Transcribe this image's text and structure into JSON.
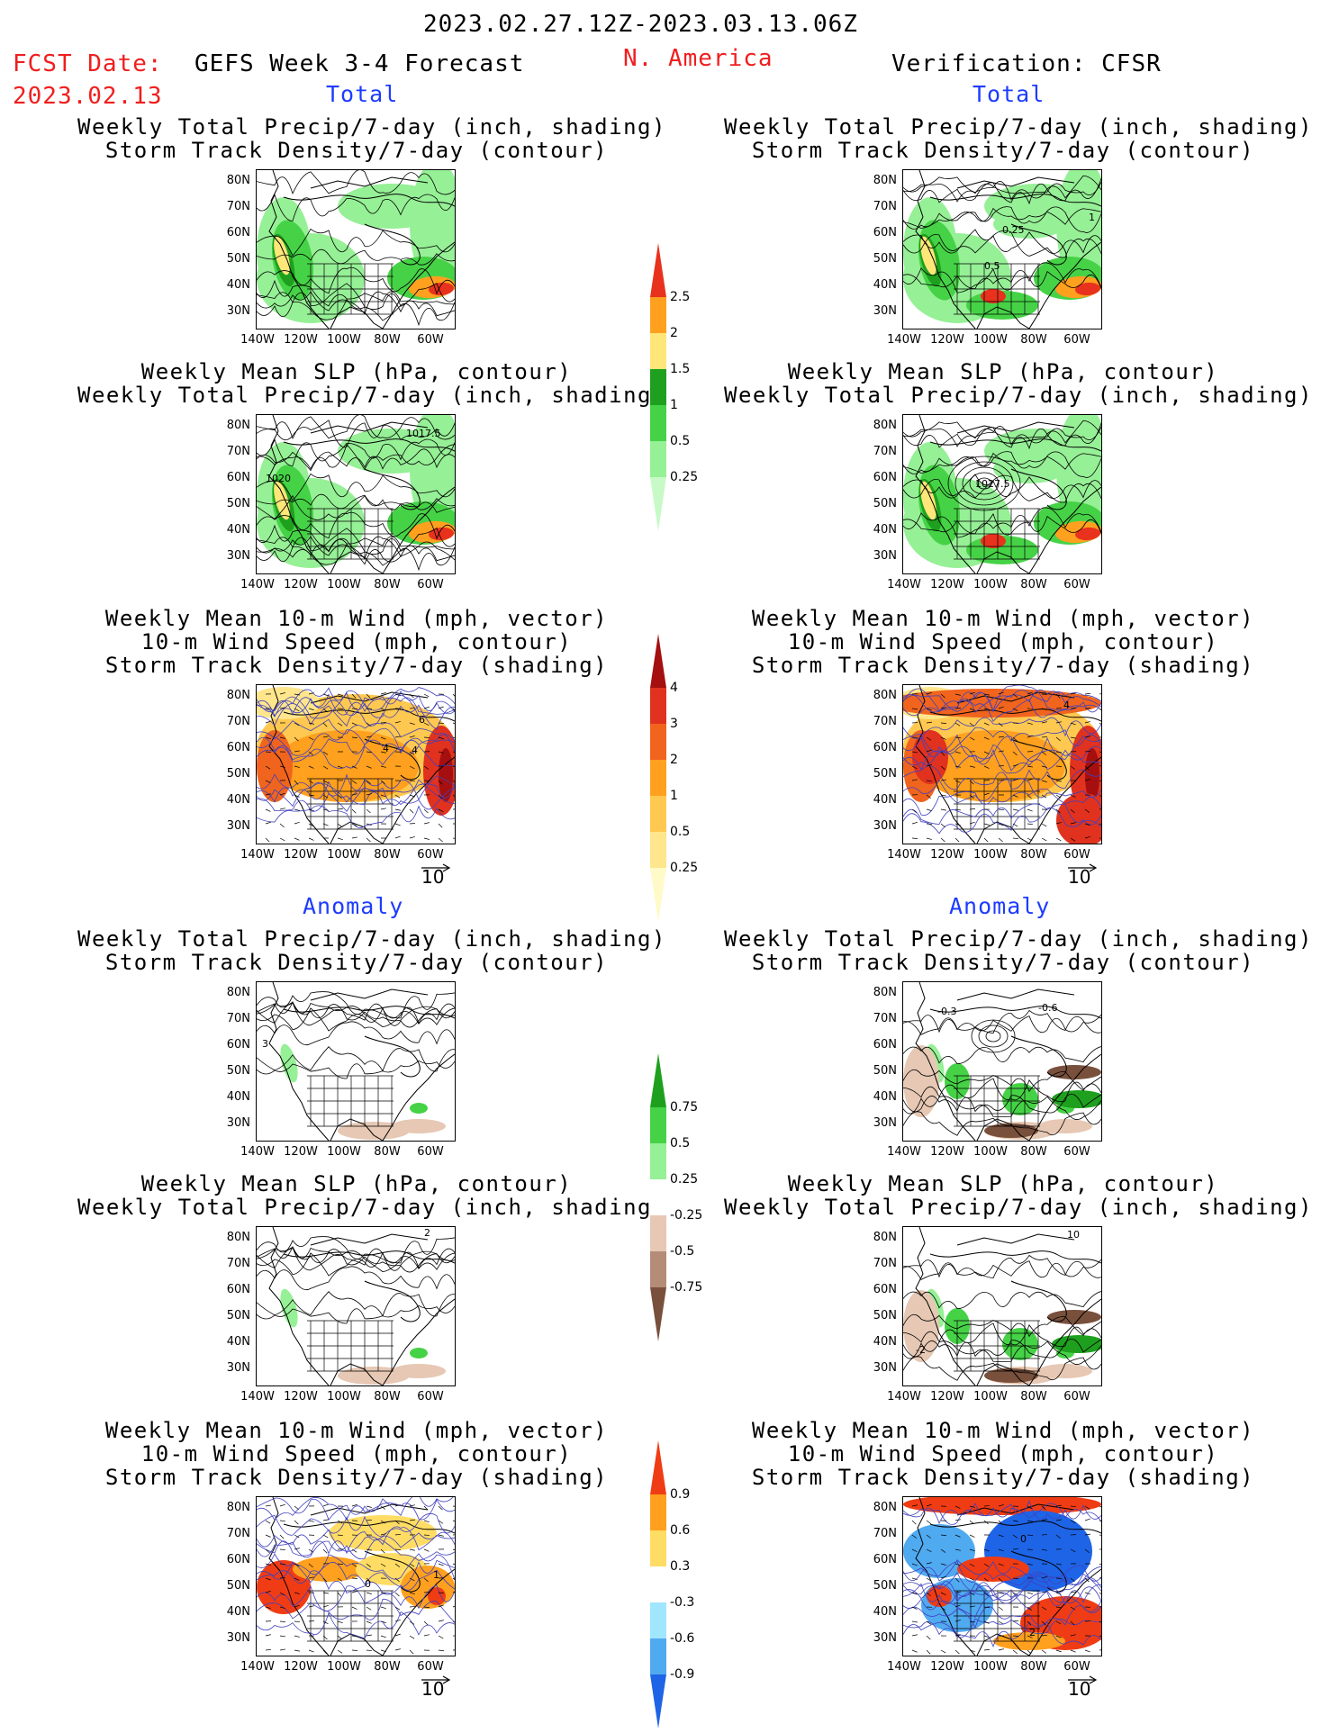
{
  "header": {
    "period": "2023.02.27.12Z-2023.03.13.06Z",
    "fcst_label": "FCST Date:",
    "fcst_date": "2023.02.13",
    "model": "GEFS Week 3-4 Forecast",
    "region": "N. America",
    "verification": "Verification: CFSR"
  },
  "sections": {
    "total": "Total",
    "anomaly": "Anomaly"
  },
  "titles": {
    "precip_storm": [
      "Weekly Total Precip/7-day (inch, shading)",
      "Storm Track Density/7-day (contour)"
    ],
    "slp_precip": [
      "Weekly Mean SLP (hPa, contour)",
      "Weekly Total Precip/7-day (inch, shading)"
    ],
    "wind_storm": [
      "Weekly Mean 10-m Wind (mph, vector)",
      "10-m Wind Speed (mph, contour)",
      "Storm Track Density/7-day (shading)"
    ]
  },
  "axes": {
    "lat_labels": [
      "80N",
      "70N",
      "60N",
      "50N",
      "40N",
      "30N"
    ],
    "lon_labels": [
      "140W",
      "120W",
      "100W",
      "80W",
      "60W"
    ]
  },
  "vector_ref": "10",
  "colorbars": {
    "precip_total": {
      "labels": [
        "2.5",
        "2",
        "1.5",
        "1",
        "0.5",
        "0.25"
      ],
      "colors": [
        "#e8321e",
        "#ffa01e",
        "#ffe678",
        "#1ea01e",
        "#46d246",
        "#96f096",
        "#c8fac8"
      ]
    },
    "storm_total": {
      "labels": [
        "4",
        "3",
        "2",
        "1",
        "0.5",
        "0.25"
      ],
      "colors": [
        "#a50f0f",
        "#e0321e",
        "#f0641e",
        "#ffa01e",
        "#ffc850",
        "#ffe68c",
        "#fffac8"
      ]
    },
    "precip_anom": {
      "labels": [
        "0.75",
        "0.5",
        "0.25",
        "-0.25",
        "-0.5",
        "-0.75"
      ],
      "colors": [
        "#1ea01e",
        "#46d246",
        "#96f096",
        "#ffffff",
        "#e6c8b4",
        "#b48c78",
        "#78503c"
      ]
    },
    "storm_anom": {
      "labels": [
        "0.9",
        "0.6",
        "0.3",
        "-0.3",
        "-0.6",
        "-0.9"
      ],
      "colors": [
        "#f03c14",
        "#ffa01e",
        "#ffdc64",
        "#ffffff",
        "#a0e6ff",
        "#50aaf0",
        "#1e64e6"
      ]
    }
  },
  "contour_labels": {
    "r1l": [],
    "r1r": [
      "0.25",
      "0.5",
      "1"
    ],
    "r2l": [
      "1017.5",
      "1020"
    ],
    "r2r": [
      "1027.5"
    ],
    "r3l": [
      "6",
      "4",
      "4"
    ],
    "r3r": [
      "4"
    ],
    "r4l": [
      "3"
    ],
    "r4r": [
      "-0.3",
      "-0.6"
    ],
    "r5l": [
      "2"
    ],
    "r5r": [
      "10",
      "-2"
    ],
    "r6l": [
      "1",
      "0"
    ],
    "r6r": [
      "0",
      "2"
    ]
  }
}
